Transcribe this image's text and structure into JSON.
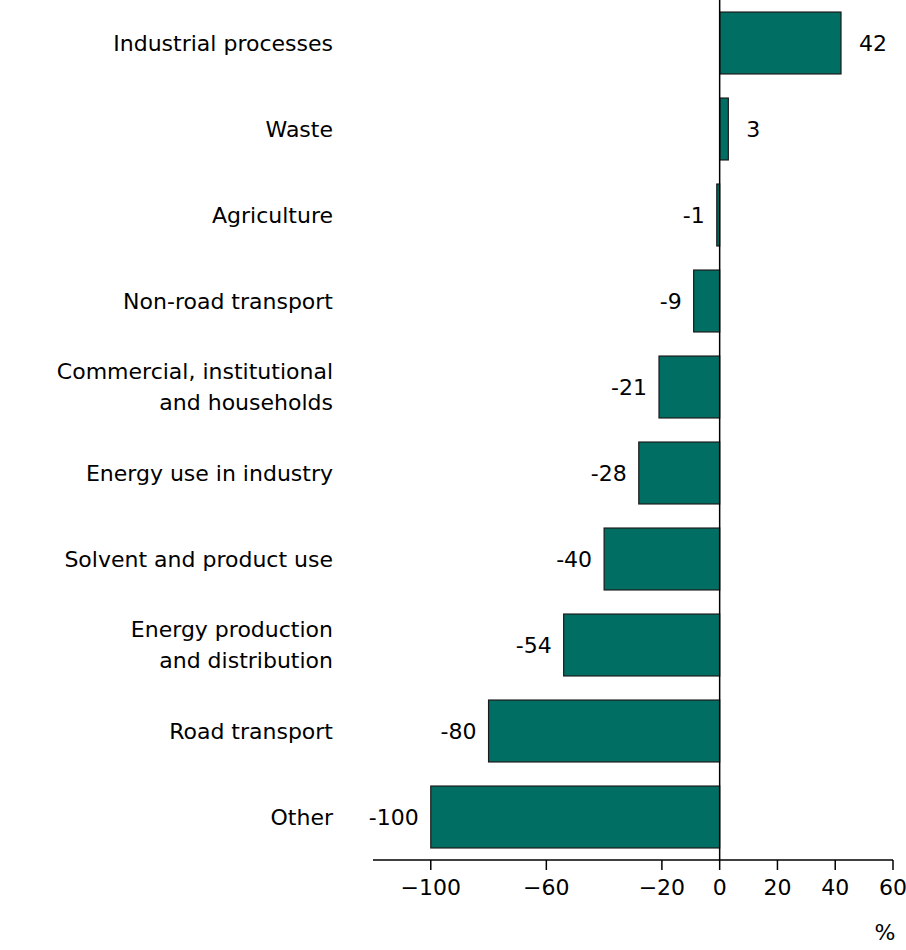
{
  "chart_data": {
    "type": "bar",
    "orientation": "horizontal",
    "categories": [
      "Industrial processes",
      "Waste",
      "Agriculture",
      "Non-road transport",
      "Commercial, institutional\nand households",
      "Energy use in industry",
      "Solvent and product use",
      "Energy production\nand distribution",
      "Road transport",
      "Other"
    ],
    "values": [
      42,
      3,
      -1,
      -9,
      -21,
      -28,
      -40,
      -54,
      -80,
      -100
    ],
    "color": "#006e63",
    "xlabel": "%",
    "xlim": [
      -120,
      60
    ],
    "xticks": [
      {
        "value": -100,
        "label": "−100"
      },
      {
        "value": -60,
        "label": "−60"
      },
      {
        "value": -20,
        "label": "−20"
      },
      0,
      20,
      40,
      60
    ],
    "data_labels": true,
    "grid": false
  }
}
